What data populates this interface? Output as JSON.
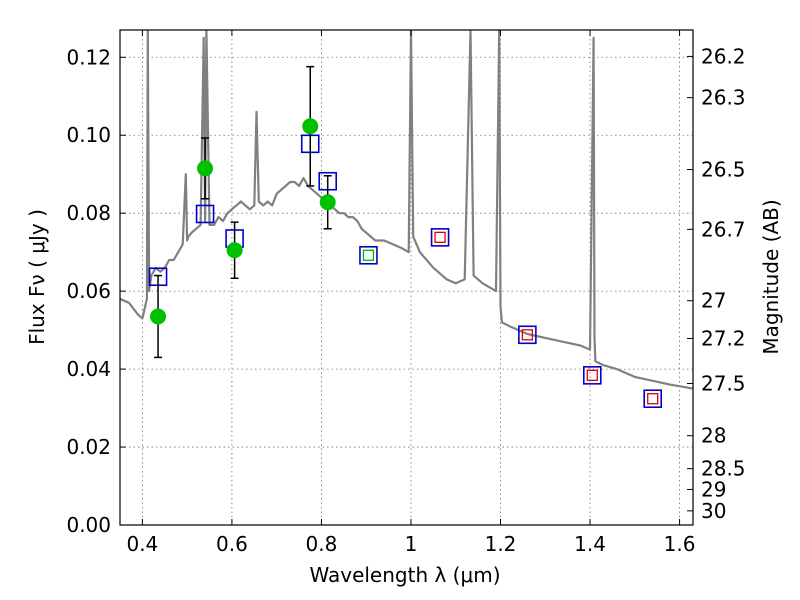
{
  "chart_data": {
    "type": "scatter",
    "xlabel": "Wavelength  λ (μm)",
    "ylabel": "Flux  Fν  ( μJy )",
    "ylabel_right": "Magnitude (AB)",
    "xlim": [
      0.35,
      1.63
    ],
    "ylim": [
      0.0,
      0.127
    ],
    "x_ticks": [
      "0.4",
      "0.6",
      "0.8",
      "1",
      "1.2",
      "1.4",
      "1.6"
    ],
    "y_ticks": [
      "0.00",
      "0.02",
      "0.04",
      "0.06",
      "0.08",
      "0.10",
      "0.12"
    ],
    "right_ticks": [
      {
        "mag": 26.2,
        "label": "26.2"
      },
      {
        "mag": 26.3,
        "label": "26.3"
      },
      {
        "mag": 26.5,
        "label": "26.5"
      },
      {
        "mag": 26.7,
        "label": "26.7"
      },
      {
        "mag": 27.0,
        "label": "27"
      },
      {
        "mag": 27.2,
        "label": "27.2"
      },
      {
        "mag": 27.5,
        "label": "27.5"
      },
      {
        "mag": 28.0,
        "label": "28"
      },
      {
        "mag": 28.5,
        "label": "28.5"
      },
      {
        "mag": 29.0,
        "label": "29"
      },
      {
        "mag": 30.0,
        "label": "30"
      }
    ],
    "grid": true,
    "colors": {
      "spectrum": "#808080",
      "observed": "#00c000",
      "model_box": "#0000cc",
      "green_inner": "#00b000",
      "red_inner": "#dd0000",
      "errorbar": "#000000"
    },
    "series": [
      {
        "name": "SED model spectrum",
        "kind": "line",
        "x": [
          0.35,
          0.37,
          0.39,
          0.4,
          0.41,
          0.412,
          0.415,
          0.42,
          0.43,
          0.44,
          0.45,
          0.46,
          0.47,
          0.48,
          0.49,
          0.497,
          0.5,
          0.503,
          0.51,
          0.52,
          0.53,
          0.537,
          0.54,
          0.543,
          0.55,
          0.56,
          0.57,
          0.58,
          0.59,
          0.6,
          0.61,
          0.62,
          0.63,
          0.64,
          0.65,
          0.655,
          0.66,
          0.67,
          0.68,
          0.69,
          0.7,
          0.71,
          0.72,
          0.73,
          0.74,
          0.75,
          0.76,
          0.77,
          0.78,
          0.79,
          0.8,
          0.81,
          0.82,
          0.83,
          0.84,
          0.85,
          0.86,
          0.87,
          0.88,
          0.89,
          0.9,
          0.92,
          0.94,
          0.96,
          0.98,
          0.995,
          1.0,
          1.005,
          1.02,
          1.05,
          1.08,
          1.1,
          1.12,
          1.133,
          1.14,
          1.16,
          1.19,
          1.197,
          1.2,
          1.203,
          1.22,
          1.26,
          1.3,
          1.34,
          1.38,
          1.4,
          1.408,
          1.41,
          1.412,
          1.43,
          1.46,
          1.5,
          1.54,
          1.58,
          1.63
        ],
        "y": [
          0.058,
          0.057,
          0.054,
          0.053,
          0.058,
          0.127,
          0.06,
          0.064,
          0.066,
          0.065,
          0.066,
          0.068,
          0.068,
          0.07,
          0.072,
          0.09,
          0.073,
          0.074,
          0.075,
          0.076,
          0.077,
          0.125,
          0.078,
          0.127,
          0.077,
          0.077,
          0.079,
          0.078,
          0.08,
          0.081,
          0.082,
          0.083,
          0.082,
          0.081,
          0.082,
          0.106,
          0.083,
          0.082,
          0.083,
          0.082,
          0.085,
          0.086,
          0.087,
          0.088,
          0.088,
          0.087,
          0.089,
          0.087,
          0.086,
          0.085,
          0.084,
          0.083,
          0.082,
          0.081,
          0.08,
          0.08,
          0.079,
          0.079,
          0.078,
          0.076,
          0.075,
          0.073,
          0.073,
          0.072,
          0.071,
          0.07,
          0.127,
          0.074,
          0.07,
          0.066,
          0.063,
          0.062,
          0.063,
          0.127,
          0.064,
          0.062,
          0.06,
          0.127,
          0.056,
          0.052,
          0.051,
          0.049,
          0.048,
          0.047,
          0.046,
          0.045,
          0.125,
          0.048,
          0.042,
          0.041,
          0.04,
          0.038,
          0.037,
          0.036,
          0.035
        ]
      },
      {
        "name": "Observed photometry",
        "kind": "scatter-errorbar",
        "x": [
          0.435,
          0.54,
          0.606,
          0.775,
          0.814
        ],
        "y": [
          0.0535,
          0.0915,
          0.0705,
          0.1023,
          0.0828
        ],
        "yerr": [
          0.0105,
          0.0078,
          0.0072,
          0.0153,
          0.0068
        ]
      },
      {
        "name": "Model photometry",
        "kind": "scatter-square",
        "x": [
          0.435,
          0.54,
          0.606,
          0.775,
          0.814,
          0.905,
          1.065,
          1.26,
          1.405,
          1.54
        ],
        "y": [
          0.0637,
          0.0798,
          0.0735,
          0.0978,
          0.0882,
          0.0692,
          0.0738,
          0.0488,
          0.0384,
          0.0324
        ],
        "inner": [
          "none",
          "none",
          "none",
          "none",
          "none",
          "green",
          "red",
          "red",
          "red",
          "red"
        ]
      }
    ]
  }
}
